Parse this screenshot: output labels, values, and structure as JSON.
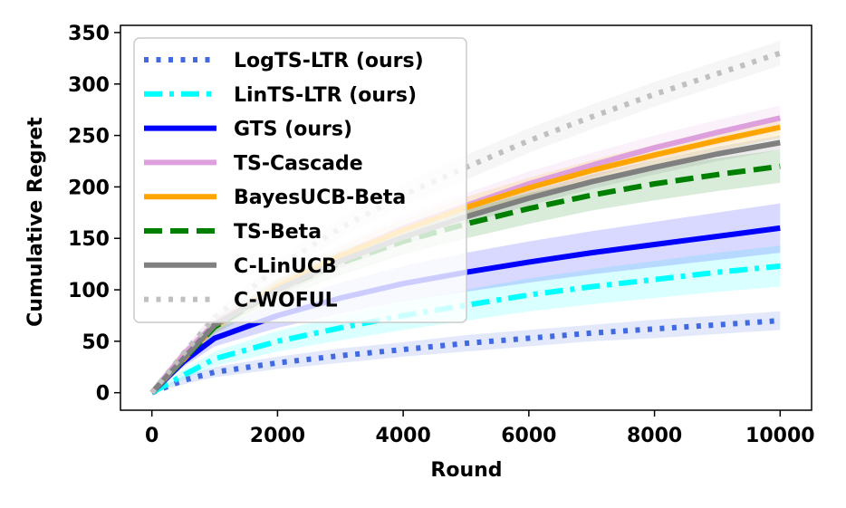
{
  "chart_data": {
    "type": "line",
    "title": "",
    "xlabel": "Round",
    "ylabel": "Cumulative Regret",
    "xlim": [
      -500,
      10500
    ],
    "ylim": [
      -17,
      357
    ],
    "xticks": [
      0,
      2000,
      4000,
      6000,
      8000,
      10000
    ],
    "yticks": [
      0,
      50,
      100,
      150,
      200,
      250,
      300,
      350
    ],
    "grid": false,
    "legend_position": "top-left",
    "x": [
      0,
      500,
      1000,
      2000,
      3000,
      4000,
      5000,
      6000,
      7000,
      8000,
      9000,
      10000
    ],
    "series": [
      {
        "name": "LogTS-LTR (ours)",
        "color": "#4169e1",
        "style": "dotted",
        "values": [
          0,
          12,
          20,
          29,
          36,
          42,
          48,
          53,
          58,
          62,
          66,
          70
        ],
        "band": [
          0,
          4,
          5,
          6,
          7,
          7,
          8,
          8,
          8,
          9,
          9,
          9
        ]
      },
      {
        "name": "LinTS-LTR (ours)",
        "color": "#00ffff",
        "style": "dashdot",
        "values": [
          0,
          17,
          33,
          50,
          63,
          75,
          85,
          95,
          103,
          110,
          117,
          123
        ],
        "band": [
          0,
          5,
          7,
          10,
          12,
          14,
          15,
          16,
          17,
          18,
          19,
          20
        ]
      },
      {
        "name": "GTS (ours)",
        "color": "#0000ff",
        "style": "solid",
        "values": [
          0,
          30,
          53,
          75,
          92,
          106,
          117,
          127,
          136,
          144,
          152,
          160
        ],
        "band": [
          0,
          5,
          8,
          12,
          15,
          17,
          19,
          20,
          21,
          22,
          23,
          24
        ]
      },
      {
        "name": "TS-Cascade",
        "color": "#dda0dd",
        "style": "solid",
        "values": [
          0,
          37,
          67,
          103,
          133,
          160,
          182,
          203,
          221,
          238,
          253,
          267
        ],
        "band": [
          0,
          5,
          8,
          10,
          11,
          12,
          12,
          12,
          12,
          12,
          12,
          12
        ]
      },
      {
        "name": "BayesUCB-Beta",
        "color": "#ffa500",
        "style": "solid",
        "values": [
          0,
          32,
          65,
          103,
          133,
          158,
          180,
          199,
          216,
          231,
          245,
          258
        ],
        "band": [
          0,
          4,
          6,
          8,
          9,
          10,
          10,
          10,
          10,
          10,
          10,
          10
        ]
      },
      {
        "name": "TS-Beta",
        "color": "#008000",
        "style": "dashed",
        "values": [
          0,
          32,
          64,
          100,
          126,
          147,
          164,
          179,
          192,
          203,
          212,
          220
        ],
        "band": [
          0,
          4,
          7,
          10,
          12,
          13,
          14,
          15,
          15,
          16,
          16,
          16
        ]
      },
      {
        "name": "C-LinUCB",
        "color": "#808080",
        "style": "solid",
        "values": [
          0,
          33,
          66,
          100,
          128,
          151,
          171,
          189,
          205,
          219,
          232,
          243
        ],
        "band": [
          0,
          3,
          5,
          6,
          7,
          7,
          7,
          7,
          7,
          7,
          7,
          7
        ]
      },
      {
        "name": "C-WOFUL",
        "color": "#c0c0c0",
        "style": "dotted",
        "values": [
          0,
          38,
          73,
          122,
          160,
          192,
          219,
          245,
          268,
          290,
          310,
          330
        ],
        "band": [
          0,
          4,
          6,
          8,
          10,
          11,
          12,
          12,
          12,
          12,
          12,
          12
        ]
      }
    ]
  }
}
